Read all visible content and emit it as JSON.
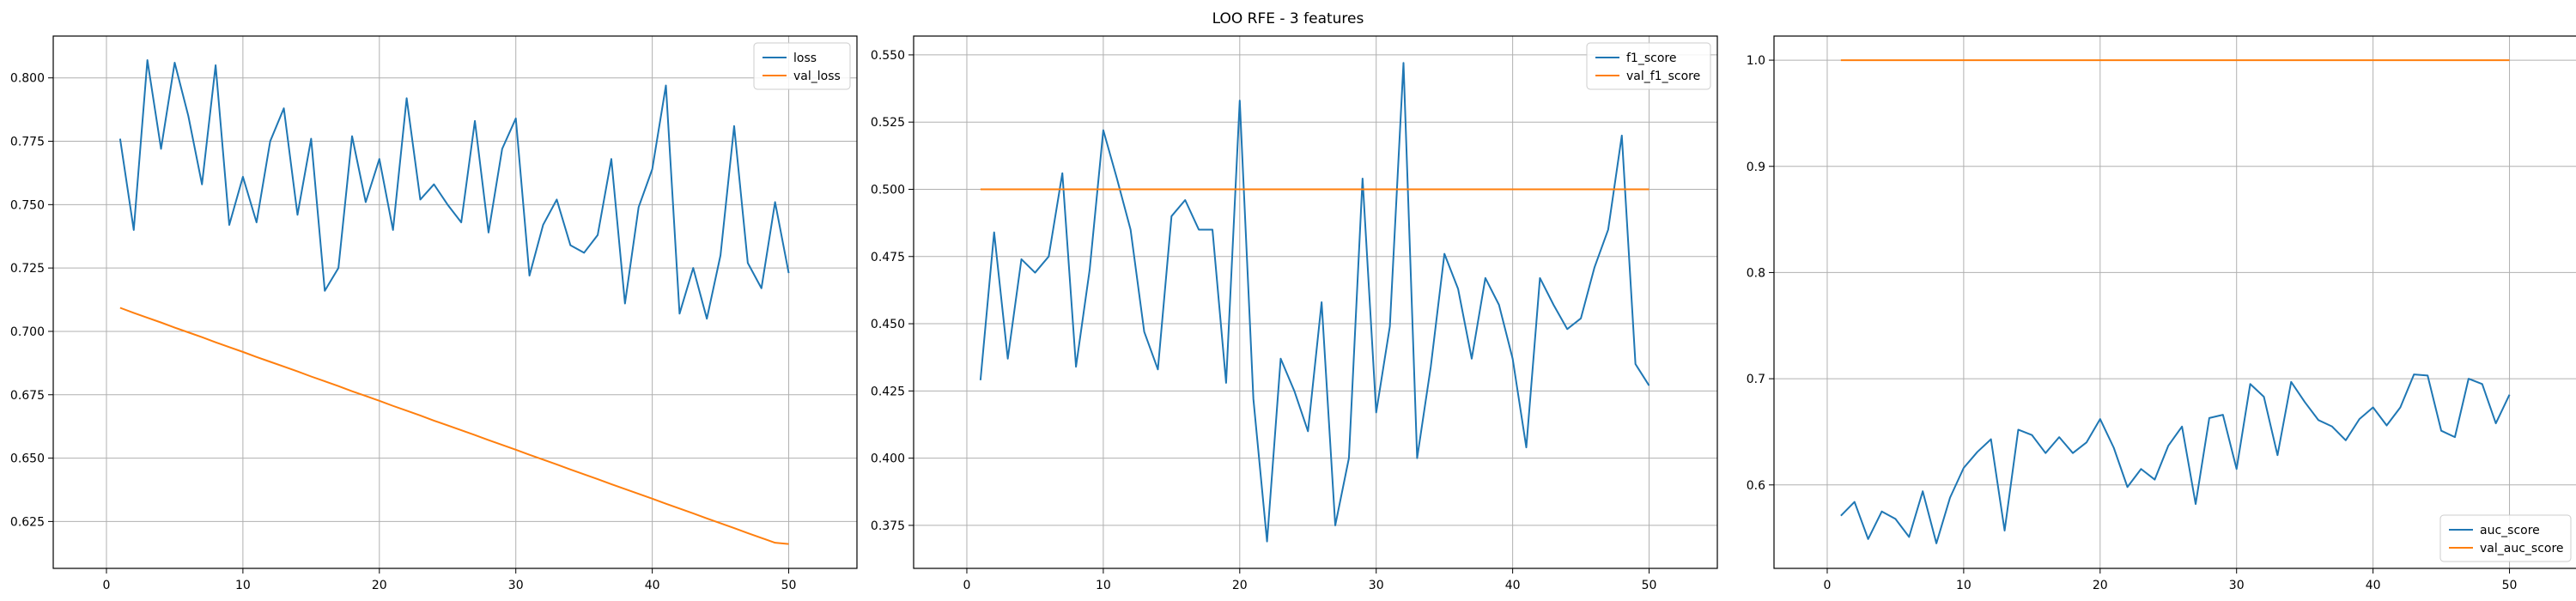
{
  "figure": {
    "title": "LOO RFE - 3 features"
  },
  "colors": {
    "series1": "#1f77b4",
    "series2": "#ff7f0e",
    "grid": "#b0b0b0",
    "axes": "#000000"
  },
  "chart_data": [
    {
      "type": "line",
      "title": "",
      "xlabel": "",
      "ylabel": "",
      "grid": true,
      "legend_position": "top-right",
      "xlim": [
        -3.9,
        55.0
      ],
      "ylim": [
        0.6065,
        0.8165
      ],
      "xticks": [
        0,
        10,
        20,
        30,
        40,
        50
      ],
      "yticks": [
        0.625,
        0.65,
        0.675,
        0.7,
        0.725,
        0.75,
        0.775,
        0.8
      ],
      "ytick_labels": [
        "0.625",
        "0.650",
        "0.675",
        "0.700",
        "0.725",
        "0.750",
        "0.775",
        "0.800"
      ],
      "x": [
        1,
        2,
        3,
        4,
        5,
        6,
        7,
        8,
        9,
        10,
        11,
        12,
        13,
        14,
        15,
        16,
        17,
        18,
        19,
        20,
        21,
        22,
        23,
        24,
        25,
        26,
        27,
        28,
        29,
        30,
        31,
        32,
        33,
        34,
        35,
        36,
        37,
        38,
        39,
        40,
        41,
        42,
        43,
        44,
        45,
        46,
        47,
        48,
        49,
        50
      ],
      "series": [
        {
          "name": "loss",
          "color": "#1f77b4",
          "values": [
            0.776,
            0.74,
            0.807,
            0.772,
            0.806,
            0.785,
            0.758,
            0.805,
            0.742,
            0.761,
            0.743,
            0.775,
            0.788,
            0.746,
            0.776,
            0.716,
            0.725,
            0.777,
            0.751,
            0.768,
            0.74,
            0.792,
            0.752,
            0.758,
            0.75,
            0.743,
            0.783,
            0.739,
            0.772,
            0.784,
            0.722,
            0.742,
            0.752,
            0.734,
            0.731,
            0.738,
            0.768,
            0.711,
            0.749,
            0.764,
            0.797,
            0.707,
            0.725,
            0.705,
            0.73,
            0.781,
            0.727,
            0.717,
            0.751,
            0.723
          ]
        },
        {
          "name": "val_loss",
          "color": "#ff7f0e",
          "values": [
            0.7093,
            0.7073,
            0.7054,
            0.7035,
            0.7015,
            0.6996,
            0.6977,
            0.6957,
            0.6938,
            0.6919,
            0.6899,
            0.688,
            0.6861,
            0.6842,
            0.6822,
            0.6803,
            0.6784,
            0.6764,
            0.6745,
            0.6726,
            0.6706,
            0.6687,
            0.6668,
            0.6648,
            0.6629,
            0.661,
            0.6591,
            0.6571,
            0.6552,
            0.6533,
            0.6513,
            0.6494,
            0.6475,
            0.6455,
            0.6436,
            0.6417,
            0.6397,
            0.6378,
            0.6359,
            0.634,
            0.632,
            0.6301,
            0.6282,
            0.6262,
            0.6243,
            0.6224,
            0.6204,
            0.6185,
            0.6166,
            0.6161
          ]
        }
      ]
    },
    {
      "type": "line",
      "title": "",
      "xlabel": "",
      "ylabel": "",
      "grid": true,
      "legend_position": "top-right",
      "xlim": [
        -3.9,
        55.0
      ],
      "ylim": [
        0.359,
        0.557
      ],
      "xticks": [
        0,
        10,
        20,
        30,
        40,
        50
      ],
      "yticks": [
        0.375,
        0.4,
        0.425,
        0.45,
        0.475,
        0.5,
        0.525,
        0.55
      ],
      "ytick_labels": [
        "0.375",
        "0.400",
        "0.425",
        "0.450",
        "0.475",
        "0.500",
        "0.525",
        "0.550"
      ],
      "x": [
        1,
        2,
        3,
        4,
        5,
        6,
        7,
        8,
        9,
        10,
        11,
        12,
        13,
        14,
        15,
        16,
        17,
        18,
        19,
        20,
        21,
        22,
        23,
        24,
        25,
        26,
        27,
        28,
        29,
        30,
        31,
        32,
        33,
        34,
        35,
        36,
        37,
        38,
        39,
        40,
        41,
        42,
        43,
        44,
        45,
        46,
        47,
        48,
        49,
        50
      ],
      "series": [
        {
          "name": "f1_score",
          "color": "#1f77b4",
          "values": [
            0.429,
            0.484,
            0.437,
            0.474,
            0.469,
            0.475,
            0.506,
            0.434,
            0.47,
            0.522,
            0.504,
            0.485,
            0.447,
            0.433,
            0.49,
            0.496,
            0.485,
            0.485,
            0.428,
            0.533,
            0.422,
            0.369,
            0.437,
            0.425,
            0.41,
            0.458,
            0.375,
            0.4,
            0.504,
            0.417,
            0.449,
            0.547,
            0.4,
            0.434,
            0.476,
            0.463,
            0.437,
            0.467,
            0.457,
            0.437,
            0.404,
            0.467,
            0.457,
            0.448,
            0.452,
            0.471,
            0.485,
            0.52,
            0.435,
            0.427
          ]
        },
        {
          "name": "val_f1_score",
          "color": "#ff7f0e",
          "values": [
            0.5,
            0.5,
            0.5,
            0.5,
            0.5,
            0.5,
            0.5,
            0.5,
            0.5,
            0.5,
            0.5,
            0.5,
            0.5,
            0.5,
            0.5,
            0.5,
            0.5,
            0.5,
            0.5,
            0.5,
            0.5,
            0.5,
            0.5,
            0.5,
            0.5,
            0.5,
            0.5,
            0.5,
            0.5,
            0.5,
            0.5,
            0.5,
            0.5,
            0.5,
            0.5,
            0.5,
            0.5,
            0.5,
            0.5,
            0.5,
            0.5,
            0.5,
            0.5,
            0.5,
            0.5,
            0.5,
            0.5,
            0.5,
            0.5,
            0.5
          ]
        }
      ]
    },
    {
      "type": "line",
      "title": "",
      "xlabel": "",
      "ylabel": "",
      "grid": true,
      "legend_position": "bottom-right",
      "xlim": [
        -3.9,
        55.0
      ],
      "ylim": [
        0.5214,
        1.0227
      ],
      "xticks": [
        0,
        10,
        20,
        30,
        40,
        50
      ],
      "yticks": [
        0.6,
        0.7,
        0.8,
        0.9,
        1.0
      ],
      "ytick_labels": [
        "0.6",
        "0.7",
        "0.8",
        "0.9",
        "1.0"
      ],
      "x": [
        1,
        2,
        3,
        4,
        5,
        6,
        7,
        8,
        9,
        10,
        11,
        12,
        13,
        14,
        15,
        16,
        17,
        18,
        19,
        20,
        21,
        22,
        23,
        24,
        25,
        26,
        27,
        28,
        29,
        30,
        31,
        32,
        33,
        34,
        35,
        36,
        37,
        38,
        39,
        40,
        41,
        42,
        43,
        44,
        45,
        46,
        47,
        48,
        49,
        50
      ],
      "series": [
        {
          "name": "auc_score",
          "color": "#1f77b4",
          "values": [
            0.571,
            0.584,
            0.549,
            0.575,
            0.568,
            0.551,
            0.594,
            0.545,
            0.588,
            0.616,
            0.631,
            0.643,
            0.557,
            0.652,
            0.647,
            0.63,
            0.645,
            0.63,
            0.64,
            0.662,
            0.635,
            0.598,
            0.615,
            0.605,
            0.637,
            0.655,
            0.582,
            0.663,
            0.666,
            0.615,
            0.695,
            0.683,
            0.628,
            0.697,
            0.678,
            0.661,
            0.655,
            0.642,
            0.662,
            0.673,
            0.656,
            0.673,
            0.704,
            0.703,
            0.651,
            0.645,
            0.7,
            0.695,
            0.658,
            0.685
          ]
        },
        {
          "name": "val_auc_score",
          "color": "#ff7f0e",
          "values": [
            1.0,
            1.0,
            1.0,
            1.0,
            1.0,
            1.0,
            1.0,
            1.0,
            1.0,
            1.0,
            1.0,
            1.0,
            1.0,
            1.0,
            1.0,
            1.0,
            1.0,
            1.0,
            1.0,
            1.0,
            1.0,
            1.0,
            1.0,
            1.0,
            1.0,
            1.0,
            1.0,
            1.0,
            1.0,
            1.0,
            1.0,
            1.0,
            1.0,
            1.0,
            1.0,
            1.0,
            1.0,
            1.0,
            1.0,
            1.0,
            1.0,
            1.0,
            1.0,
            1.0,
            1.0,
            1.0,
            1.0,
            1.0,
            1.0,
            1.0
          ]
        }
      ]
    }
  ]
}
